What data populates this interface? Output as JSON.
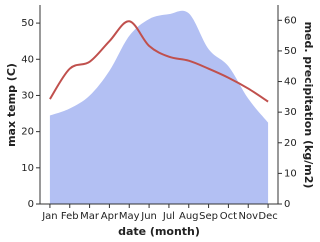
{
  "chart_data": {
    "type": "line",
    "x_label": "date (month)",
    "y_label": "max temp (C)",
    "y2_label": "med. precipitation (kg/m2)",
    "categories": [
      "Jan",
      "Feb",
      "Mar",
      "Apr",
      "May",
      "Jun",
      "Jul",
      "Aug",
      "Sep",
      "Oct",
      "Nov",
      "Dec"
    ],
    "series": [
      {
        "name": "max temp",
        "color": "#c0504d",
        "values": [
          29,
          37.4,
          39.3,
          45,
          50.5,
          43.7,
          40.7,
          39.6,
          37.4,
          34.9,
          31.9,
          28.3
        ]
      },
      {
        "name": "med. precipitation",
        "color": "#b3c0f3",
        "axis": "y2",
        "values": [
          28.9,
          31.2,
          35.4,
          43.5,
          54.9,
          60.4,
          62,
          62.3,
          50.6,
          45,
          34.4,
          26.6
        ]
      }
    ],
    "ylim": [
      0,
      55
    ],
    "yticks": [
      0,
      10,
      20,
      30,
      40,
      50
    ],
    "y2lim": [
      0,
      65
    ],
    "y2ticks": [
      0,
      10,
      20,
      30,
      40,
      50,
      60
    ]
  }
}
